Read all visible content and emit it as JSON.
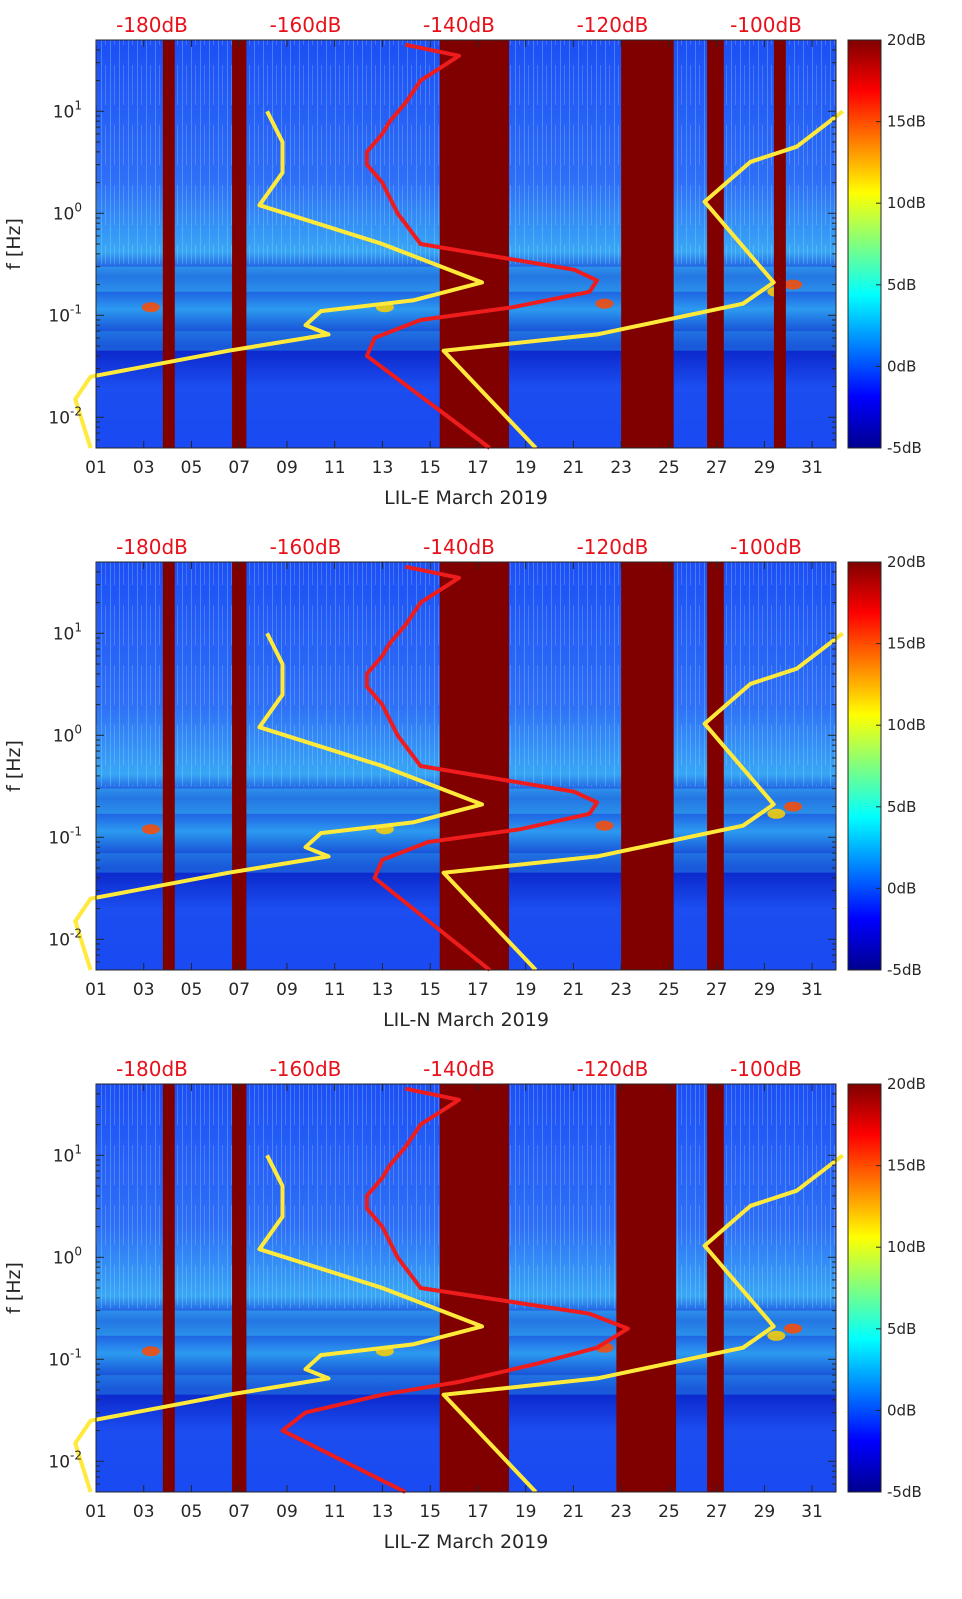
{
  "chart_data": [
    {
      "type": "heatmap",
      "station": "LIL-E",
      "xlabel": "LIL-E March 2019",
      "ylabel": "f [Hz]",
      "x_ticks": [
        "01",
        "03",
        "05",
        "07",
        "09",
        "11",
        "13",
        "15",
        "17",
        "19",
        "21",
        "23",
        "25",
        "27",
        "29",
        "31"
      ],
      "y_ticks": [
        {
          "value": 0.01,
          "base": "10",
          "exp": "-2"
        },
        {
          "value": 0.1,
          "base": "10",
          "exp": "-1"
        },
        {
          "value": 1,
          "base": "10",
          "exp": "0"
        },
        {
          "value": 10,
          "base": "10",
          "exp": "1"
        }
      ],
      "xlim": [
        1,
        32
      ],
      "ylim": [
        0.005,
        50
      ],
      "top_axis_labels": [
        "-180dB",
        "-160dB",
        "-140dB",
        "-120dB",
        "-100dB"
      ],
      "top_axis_db": [
        -180,
        -160,
        -140,
        -120,
        -100
      ],
      "colorbar": {
        "min": -5,
        "max": 20,
        "ticks": [
          "20dB",
          "15dB",
          "10dB",
          "5dB",
          "0dB",
          "-5dB"
        ]
      },
      "gaps_days": [
        [
          3.8,
          4.3
        ],
        [
          6.7,
          7.3
        ],
        [
          15.4,
          18.3
        ],
        [
          23.0,
          25.2
        ],
        [
          26.6,
          27.3
        ],
        [
          29.4,
          29.9
        ]
      ],
      "noise_model_low": {
        "name": "yellow",
        "points": [
          [
            -188,
            0.005
          ],
          [
            -190,
            0.015
          ],
          [
            -188,
            0.025
          ],
          [
            -170,
            0.045
          ],
          [
            -157,
            0.065
          ],
          [
            -160,
            0.08
          ],
          [
            -158,
            0.11
          ],
          [
            -146,
            0.14
          ],
          [
            -137,
            0.21
          ],
          [
            -150,
            0.5
          ],
          [
            -166,
            1.2
          ],
          [
            -163,
            2.5
          ],
          [
            -163,
            5
          ],
          [
            -165,
            10
          ]
        ]
      },
      "noise_model_high": {
        "name": "yellow",
        "points": [
          [
            -130,
            0.005
          ],
          [
            -142,
            0.045
          ],
          [
            -122,
            0.065
          ],
          [
            -103,
            0.13
          ],
          [
            -99,
            0.21
          ],
          [
            -108,
            1.3
          ],
          [
            -102,
            3.2
          ],
          [
            -96,
            4.5
          ],
          [
            -90,
            10
          ]
        ]
      },
      "station_median": {
        "name": "red",
        "points": [
          [
            -136,
            0.005
          ],
          [
            -152,
            0.04
          ],
          [
            -151,
            0.06
          ],
          [
            -145,
            0.09
          ],
          [
            -133,
            0.12
          ],
          [
            -123,
            0.17
          ],
          [
            -122,
            0.22
          ],
          [
            -125,
            0.28
          ],
          [
            -145,
            0.5
          ],
          [
            -148,
            1
          ],
          [
            -150,
            2
          ],
          [
            -152,
            3
          ],
          [
            -152,
            4
          ],
          [
            -150,
            6
          ],
          [
            -149,
            8
          ],
          [
            -147,
            12
          ],
          [
            -145,
            20
          ],
          [
            -140,
            35
          ],
          [
            -147,
            45
          ]
        ]
      }
    },
    {
      "type": "heatmap",
      "station": "LIL-N",
      "xlabel": "LIL-N March 2019",
      "ylabel": "f [Hz]",
      "x_ticks": [
        "01",
        "03",
        "05",
        "07",
        "09",
        "11",
        "13",
        "15",
        "17",
        "19",
        "21",
        "23",
        "25",
        "27",
        "29",
        "31"
      ],
      "y_ticks": [
        {
          "value": 0.01,
          "base": "10",
          "exp": "-2"
        },
        {
          "value": 0.1,
          "base": "10",
          "exp": "-1"
        },
        {
          "value": 1,
          "base": "10",
          "exp": "0"
        },
        {
          "value": 10,
          "base": "10",
          "exp": "1"
        }
      ],
      "xlim": [
        1,
        32
      ],
      "ylim": [
        0.005,
        50
      ],
      "top_axis_labels": [
        "-180dB",
        "-160dB",
        "-140dB",
        "-120dB",
        "-100dB"
      ],
      "top_axis_db": [
        -180,
        -160,
        -140,
        -120,
        -100
      ],
      "colorbar": {
        "min": -5,
        "max": 20,
        "ticks": [
          "20dB",
          "15dB",
          "10dB",
          "5dB",
          "0dB",
          "-5dB"
        ]
      },
      "gaps_days": [
        [
          3.8,
          4.3
        ],
        [
          6.7,
          7.3
        ],
        [
          15.4,
          18.3
        ],
        [
          23.0,
          25.2
        ],
        [
          26.6,
          27.3
        ]
      ],
      "noise_model_low": {
        "name": "yellow",
        "points": [
          [
            -188,
            0.005
          ],
          [
            -190,
            0.015
          ],
          [
            -188,
            0.025
          ],
          [
            -170,
            0.045
          ],
          [
            -157,
            0.065
          ],
          [
            -160,
            0.08
          ],
          [
            -158,
            0.11
          ],
          [
            -146,
            0.14
          ],
          [
            -137,
            0.21
          ],
          [
            -150,
            0.5
          ],
          [
            -166,
            1.2
          ],
          [
            -163,
            2.5
          ],
          [
            -163,
            5
          ],
          [
            -165,
            10
          ]
        ]
      },
      "noise_model_high": {
        "name": "yellow",
        "points": [
          [
            -130,
            0.005
          ],
          [
            -142,
            0.045
          ],
          [
            -122,
            0.065
          ],
          [
            -103,
            0.13
          ],
          [
            -99,
            0.21
          ],
          [
            -108,
            1.3
          ],
          [
            -102,
            3.2
          ],
          [
            -96,
            4.5
          ],
          [
            -90,
            10
          ]
        ]
      },
      "station_median": {
        "name": "red",
        "points": [
          [
            -136,
            0.005
          ],
          [
            -151,
            0.04
          ],
          [
            -150,
            0.06
          ],
          [
            -144,
            0.09
          ],
          [
            -132,
            0.12
          ],
          [
            -123,
            0.17
          ],
          [
            -122,
            0.22
          ],
          [
            -125,
            0.28
          ],
          [
            -145,
            0.5
          ],
          [
            -148,
            1
          ],
          [
            -150,
            2
          ],
          [
            -152,
            3
          ],
          [
            -152,
            4
          ],
          [
            -150,
            6
          ],
          [
            -149,
            8
          ],
          [
            -147,
            12
          ],
          [
            -145,
            20
          ],
          [
            -140,
            35
          ],
          [
            -147,
            45
          ]
        ]
      }
    },
    {
      "type": "heatmap",
      "station": "LIL-Z",
      "xlabel": "LIL-Z March 2019",
      "ylabel": "f [Hz]",
      "x_ticks": [
        "01",
        "03",
        "05",
        "07",
        "09",
        "11",
        "13",
        "15",
        "17",
        "19",
        "21",
        "23",
        "25",
        "27",
        "29",
        "31"
      ],
      "y_ticks": [
        {
          "value": 0.01,
          "base": "10",
          "exp": "-2"
        },
        {
          "value": 0.1,
          "base": "10",
          "exp": "-1"
        },
        {
          "value": 1,
          "base": "10",
          "exp": "0"
        },
        {
          "value": 10,
          "base": "10",
          "exp": "1"
        }
      ],
      "xlim": [
        1,
        32
      ],
      "ylim": [
        0.005,
        50
      ],
      "top_axis_labels": [
        "-180dB",
        "-160dB",
        "-140dB",
        "-120dB",
        "-100dB"
      ],
      "top_axis_db": [
        -180,
        -160,
        -140,
        -120,
        -100
      ],
      "colorbar": {
        "min": -5,
        "max": 20,
        "ticks": [
          "20dB",
          "15dB",
          "10dB",
          "5dB",
          "0dB",
          "-5dB"
        ]
      },
      "gaps_days": [
        [
          3.8,
          4.3
        ],
        [
          6.7,
          7.3
        ],
        [
          15.4,
          18.3
        ],
        [
          22.8,
          25.3
        ],
        [
          26.6,
          27.3
        ]
      ],
      "noise_model_low": {
        "name": "yellow",
        "points": [
          [
            -188,
            0.005
          ],
          [
            -190,
            0.015
          ],
          [
            -188,
            0.025
          ],
          [
            -170,
            0.045
          ],
          [
            -157,
            0.065
          ],
          [
            -160,
            0.08
          ],
          [
            -158,
            0.11
          ],
          [
            -146,
            0.14
          ],
          [
            -137,
            0.21
          ],
          [
            -150,
            0.5
          ],
          [
            -166,
            1.2
          ],
          [
            -163,
            2.5
          ],
          [
            -163,
            5
          ],
          [
            -165,
            10
          ]
        ]
      },
      "noise_model_high": {
        "name": "yellow",
        "points": [
          [
            -130,
            0.005
          ],
          [
            -142,
            0.045
          ],
          [
            -122,
            0.065
          ],
          [
            -103,
            0.13
          ],
          [
            -99,
            0.21
          ],
          [
            -108,
            1.3
          ],
          [
            -102,
            3.2
          ],
          [
            -96,
            4.5
          ],
          [
            -90,
            10
          ]
        ]
      },
      "station_median": {
        "name": "red",
        "points": [
          [
            -147,
            0.005
          ],
          [
            -163,
            0.02
          ],
          [
            -160,
            0.03
          ],
          [
            -150,
            0.045
          ],
          [
            -140,
            0.06
          ],
          [
            -130,
            0.09
          ],
          [
            -122,
            0.13
          ],
          [
            -119,
            0.18
          ],
          [
            -118,
            0.2
          ],
          [
            -123,
            0.28
          ],
          [
            -145,
            0.5
          ],
          [
            -148,
            1
          ],
          [
            -150,
            2
          ],
          [
            -152,
            3
          ],
          [
            -152,
            4
          ],
          [
            -150,
            6
          ],
          [
            -149,
            8
          ],
          [
            -147,
            12
          ],
          [
            -145,
            20
          ],
          [
            -140,
            35
          ],
          [
            -147,
            45
          ]
        ]
      }
    }
  ]
}
